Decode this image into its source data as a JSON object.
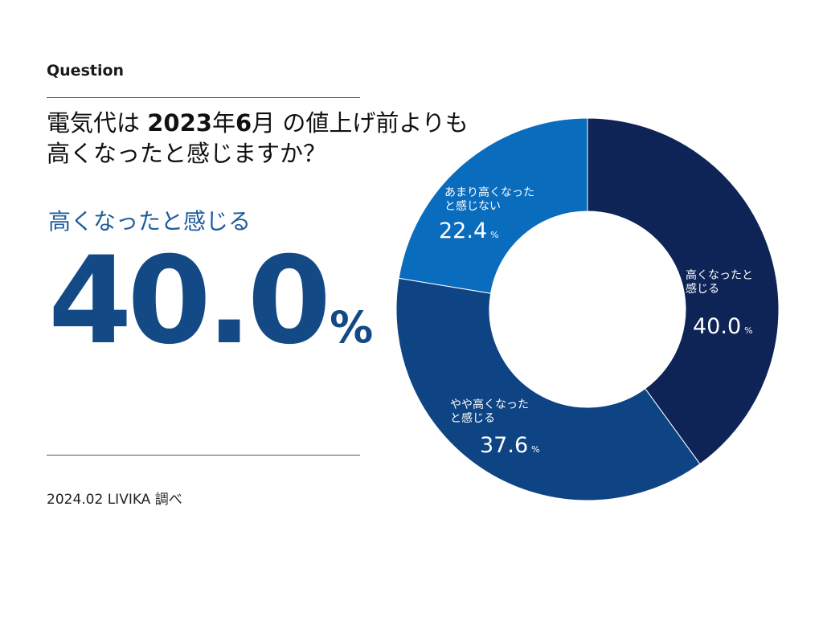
{
  "header": {
    "section_label": "Question",
    "question_pre": "電気代は ",
    "question_bold1": "2023",
    "question_mid1": "年",
    "question_bold2": "6",
    "question_mid2": "月 の値上げ前よりも",
    "question_line2": "高くなったと感じますか？"
  },
  "highlight": {
    "label": "高くなったと感じる",
    "value": "40.0",
    "unit": "%"
  },
  "footer": {
    "source": "2024.02 LIVIKA 調べ"
  },
  "colors": {
    "slice1": "#0e2456",
    "slice2": "#0f4484",
    "slice3": "#0a6cbd",
    "accent": "#134a86"
  },
  "chart_data": {
    "type": "pie",
    "variant": "donut",
    "title": "",
    "unit": "%",
    "slices": [
      {
        "label_line1": "高くなったと",
        "label_line2": "感じる",
        "value": 40.0,
        "value_text": "40.0"
      },
      {
        "label_line1": "やや高くなった",
        "label_line2": "と感じる",
        "value": 37.6,
        "value_text": "37.6"
      },
      {
        "label_line1": "あまり高くなった",
        "label_line2": "と感じない",
        "value": 22.4,
        "value_text": "22.4"
      }
    ]
  }
}
